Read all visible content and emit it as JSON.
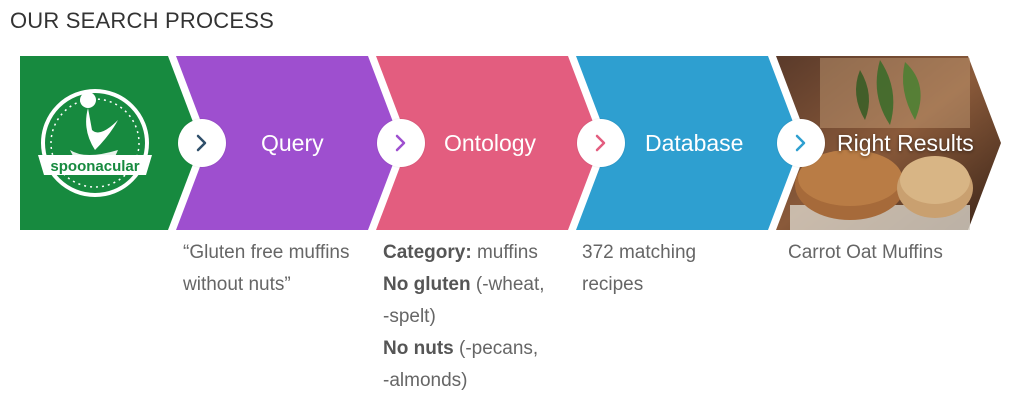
{
  "title": "OUR SEARCH PROCESS",
  "logo": {
    "text": "spoonacular"
  },
  "steps": [
    {
      "label": "Query",
      "color": "#9e4fcf",
      "bubble_color": "#3a4a7a"
    },
    {
      "label": "Ontology",
      "color": "#e35d7f",
      "bubble_color": "#9e4fcf"
    },
    {
      "label": "Database",
      "color": "#2e9fd0",
      "bubble_color": "#e35d7f"
    },
    {
      "label": "Right Results",
      "color": "#7a3d2a",
      "bubble_color": "#2e9fd0"
    }
  ],
  "first_segment_color": "#178a3f",
  "descriptions": {
    "query": {
      "line1": "“Gluten free muffins",
      "line2": "without nuts”"
    },
    "ontology": {
      "category_key": "Category:",
      "category_val": " muffins",
      "gluten_key": "No gluten",
      "gluten_val": " (-wheat,",
      "gluten_cont": "-spelt)",
      "nuts_key": "No nuts",
      "nuts_val": " (-pecans,",
      "nuts_cont": "-almonds)"
    },
    "database": {
      "line1": "372 matching",
      "line2": "recipes"
    },
    "results": {
      "line1": "Carrot Oat Muffins"
    }
  }
}
